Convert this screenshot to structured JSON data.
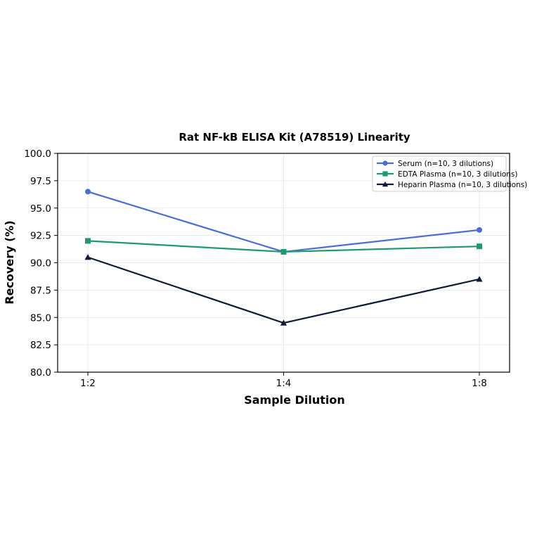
{
  "chart_data": {
    "type": "line",
    "title": "Rat NF-kB ELISA Kit (A78519) Linearity",
    "xlabel": "Sample Dilution",
    "ylabel": "Recovery (%)",
    "categories": [
      "1:2",
      "1:4",
      "1:8"
    ],
    "ylim": [
      80.0,
      100.0
    ],
    "yticks": [
      "80.0",
      "82.5",
      "85.0",
      "87.5",
      "90.0",
      "92.5",
      "95.0",
      "97.5",
      "100.0"
    ],
    "grid": true,
    "legend_position": "top-right",
    "series": [
      {
        "name": "Serum (n=10, 3 dilutions)",
        "values": [
          96.5,
          91.0,
          93.0
        ],
        "color": "#4a6fd4",
        "marker": "circle"
      },
      {
        "name": "EDTA Plasma (n=10, 3 dilutions)",
        "values": [
          92.0,
          91.0,
          91.5
        ],
        "color": "#1f9a6e",
        "marker": "square"
      },
      {
        "name": "Heparin Plasma (n=10, 3 dilutions)",
        "values": [
          90.5,
          84.5,
          88.5
        ],
        "color": "#0f1a3c",
        "marker": "triangle"
      }
    ]
  }
}
